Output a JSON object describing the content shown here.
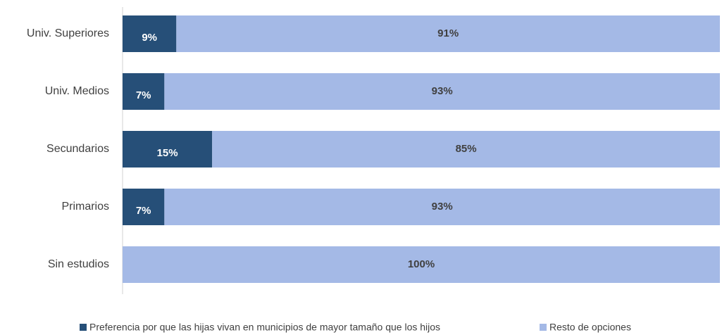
{
  "chart_data": {
    "type": "stacked-barh",
    "categories": [
      "Univ. Superiores",
      "Univ. Medios",
      "Secundarios",
      "Primarios",
      "Sin estudios"
    ],
    "series": [
      {
        "name": "Preferencia por que las hijas vivan en municipios de mayor tamaño que los hijos",
        "color": "#264f78",
        "values": [
          9,
          7,
          15,
          7,
          0
        ],
        "value_labels": [
          "9%",
          "7%",
          "15%",
          "7%",
          null
        ]
      },
      {
        "name": "Resto de opciones",
        "color": "#a4b9e6",
        "values": [
          91,
          93,
          85,
          93,
          100
        ],
        "value_labels": [
          "91%",
          "93%",
          "85%",
          "93%",
          "100%"
        ]
      }
    ],
    "xlim": [
      0,
      100
    ],
    "legend": "bottom"
  }
}
